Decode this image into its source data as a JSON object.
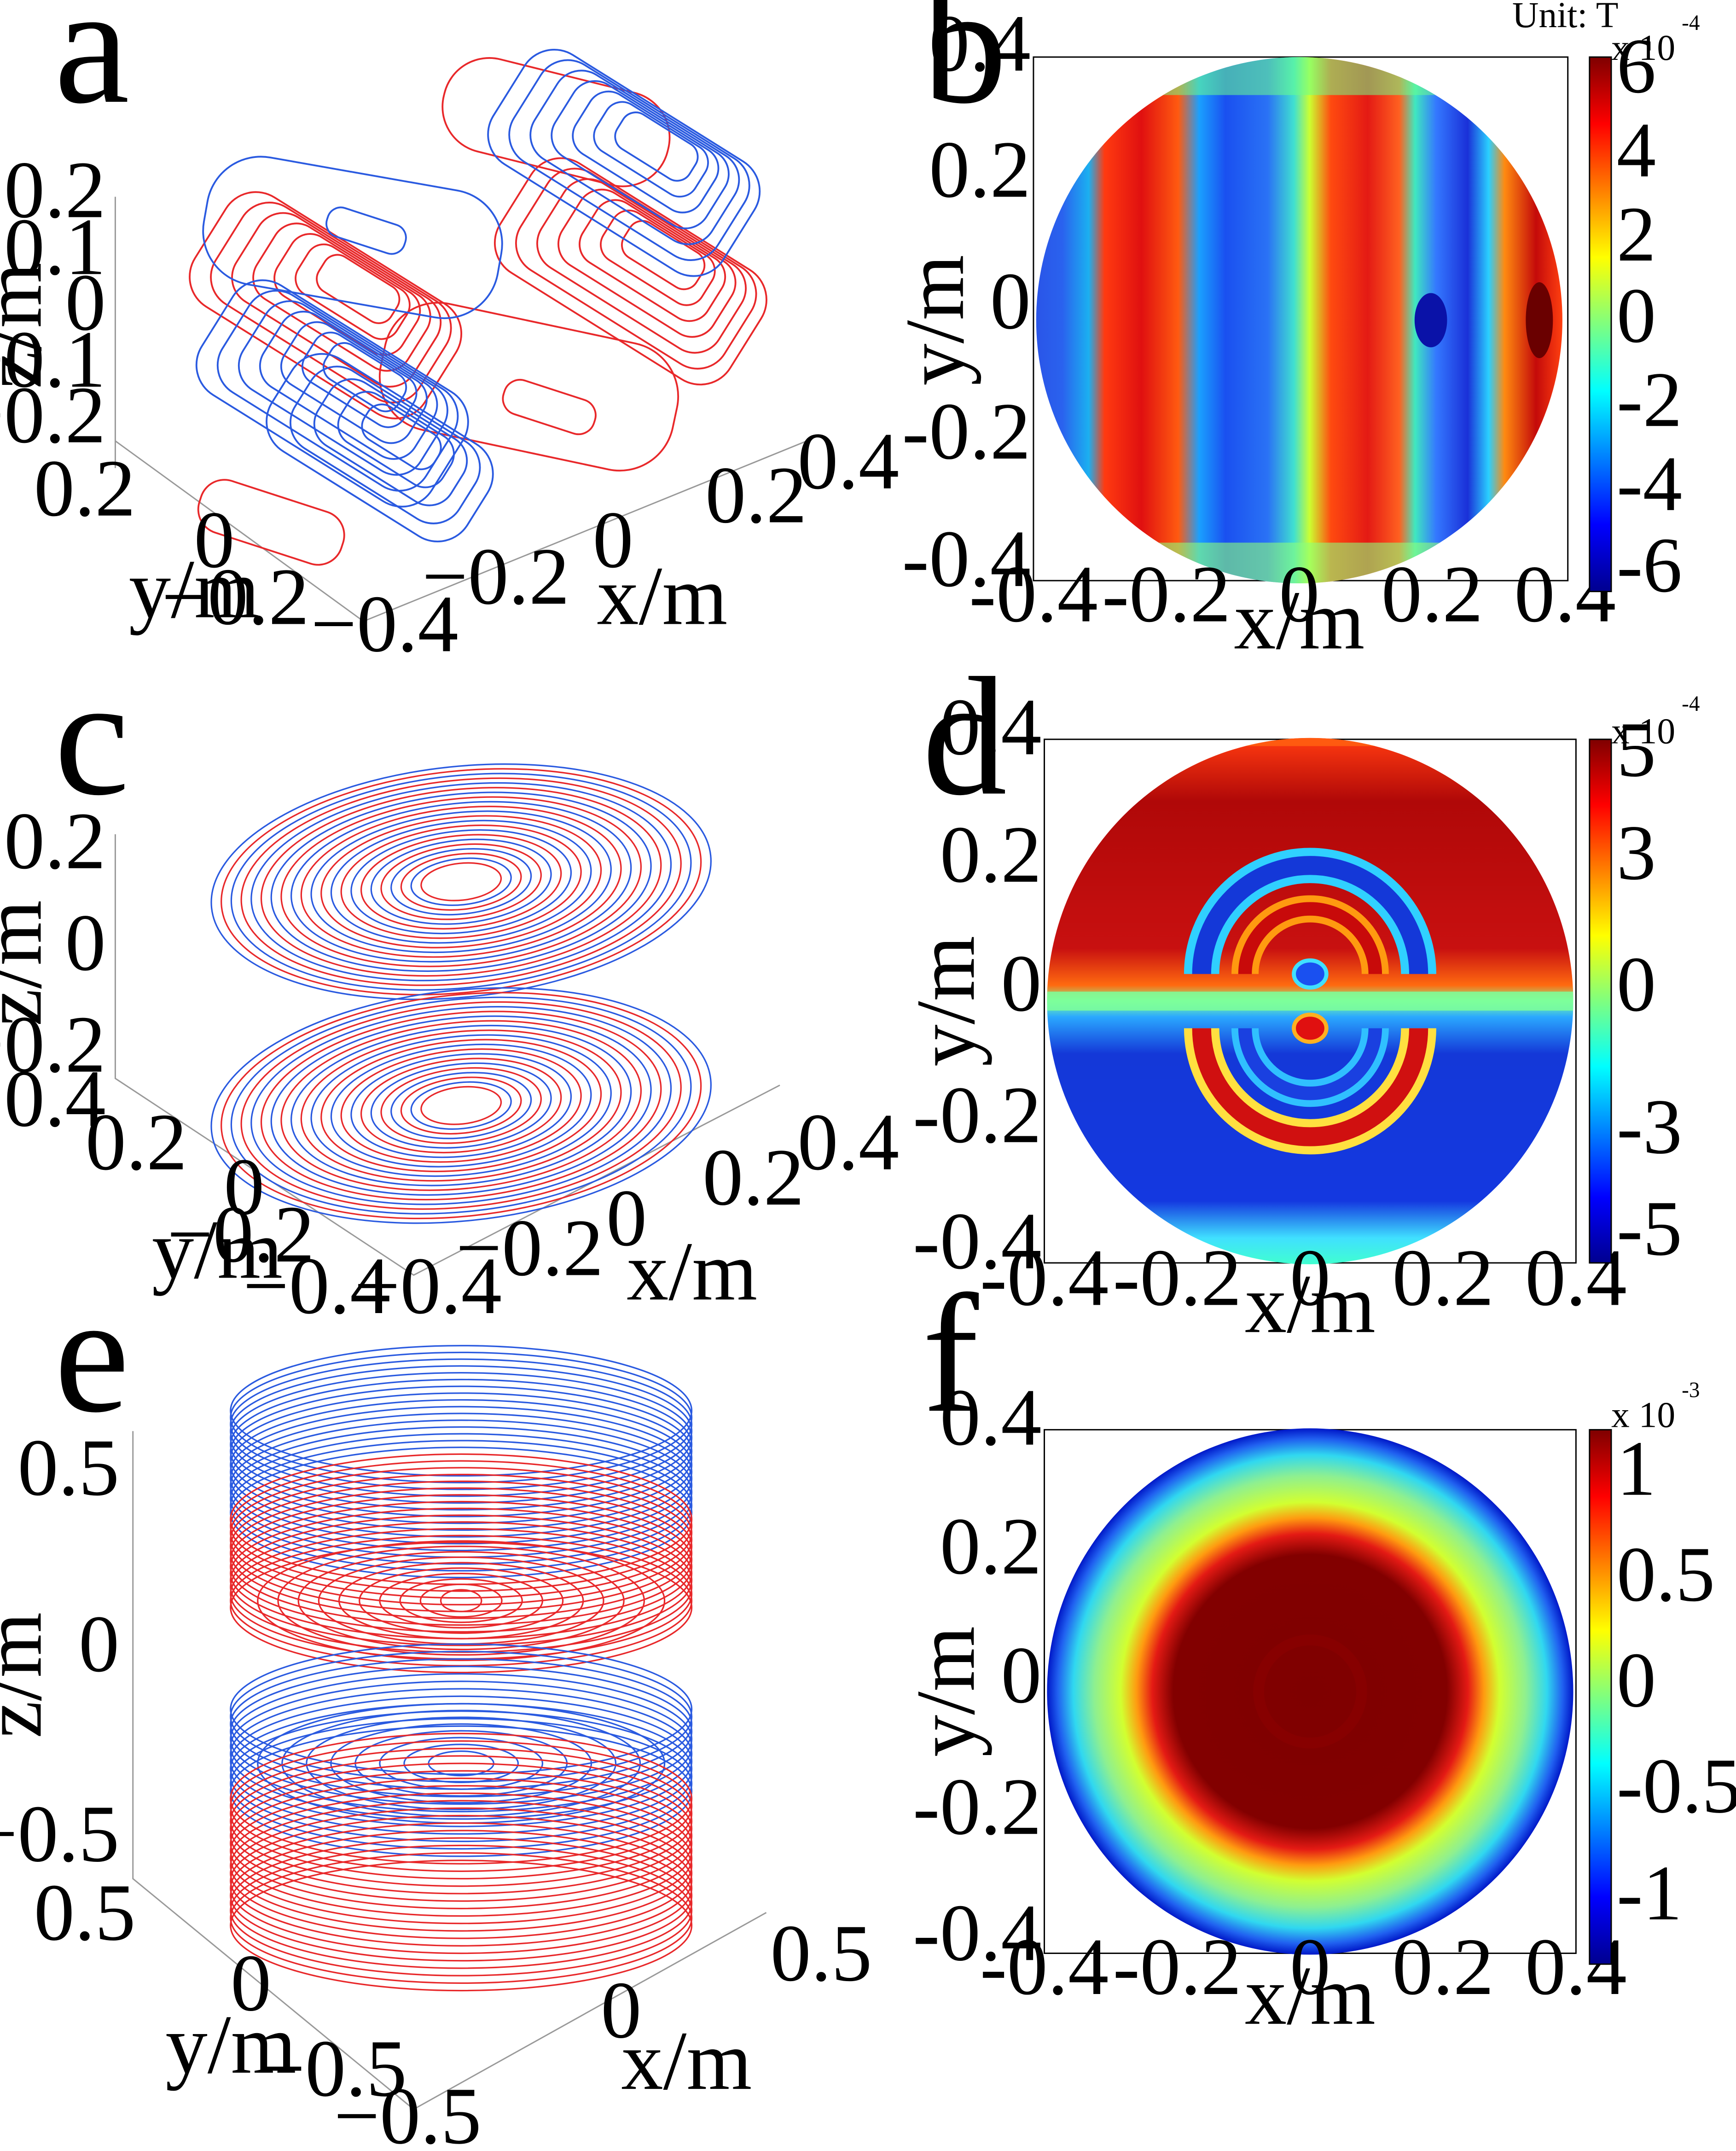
{
  "panels": [
    {
      "id": "a",
      "type": "3d-contour",
      "letter": "a",
      "axes": {
        "x": {
          "label": "x/m",
          "ticks": [
            "−0.4",
            "−0.2",
            "0",
            "0.2",
            "0.4"
          ]
        },
        "y": {
          "label": "y/m",
          "ticks": [
            "−0.2",
            "0",
            "0.2"
          ]
        },
        "z": {
          "label": "z/m",
          "ticks": [
            "−0.2",
            "−0.1",
            "0",
            "0.1",
            "0.2"
          ]
        }
      },
      "colors": {
        "positive": "#e8282a",
        "negative": "#2a5ae0"
      }
    },
    {
      "id": "b",
      "type": "heatmap",
      "letter": "b",
      "unit": "Unit: T",
      "exponent_base": "x 10",
      "exponent": "-4",
      "xlabel": "x/m",
      "ylabel": "y/m",
      "xticks": [
        "-0.4",
        "-0.2",
        "0",
        "0.2",
        "0.4"
      ],
      "yticks": [
        "-0.4",
        "-0.2",
        "0",
        "0.2",
        "0.4"
      ],
      "colorbar_ticks": [
        "6",
        "4",
        "2",
        "0",
        "-2",
        "-4",
        "-6"
      ]
    },
    {
      "id": "c",
      "type": "3d-contour",
      "letter": "c",
      "axes": {
        "x": {
          "label": "x/m",
          "ticks": [
            "−0.4",
            "−0.2",
            "0",
            "0.2",
            "0.4"
          ]
        },
        "y": {
          "label": "y/m",
          "ticks": [
            "−0.4",
            "−0.2",
            "0",
            "0.2",
            "0.4"
          ]
        },
        "z": {
          "label": "z/m",
          "ticks": [
            "−0.2",
            "0",
            "0.2"
          ]
        }
      }
    },
    {
      "id": "d",
      "type": "heatmap",
      "letter": "d",
      "exponent_base": "x 10",
      "exponent": "-4",
      "xlabel": "x/m",
      "ylabel": "y/m",
      "xticks": [
        "-0.4",
        "-0.2",
        "0",
        "0.2",
        "0.4"
      ],
      "yticks": [
        "-0.4",
        "-0.2",
        "0",
        "0.2",
        "0.4"
      ],
      "colorbar_ticks": [
        "5",
        "3",
        "0",
        "-3",
        "-5"
      ]
    },
    {
      "id": "e",
      "type": "3d-contour",
      "letter": "e",
      "axes": {
        "x": {
          "label": "x/m",
          "ticks": [
            "−0.5",
            "0",
            "0.5"
          ]
        },
        "y": {
          "label": "y/m",
          "ticks": [
            "−0.5",
            "0",
            "0.5"
          ]
        },
        "z": {
          "label": "z/m",
          "ticks": [
            "−0.5",
            "0",
            "0.5"
          ]
        }
      }
    },
    {
      "id": "f",
      "type": "heatmap",
      "letter": "f",
      "exponent_base": "x 10",
      "exponent": "-3",
      "xlabel": "x/m",
      "ylabel": "y/m",
      "xticks": [
        "-0.4",
        "-0.2",
        "0",
        "0.2",
        "0.4"
      ],
      "yticks": [
        "-0.4",
        "-0.2",
        "0",
        "0.2",
        "0.4"
      ],
      "colorbar_ticks": [
        "1",
        "0.5",
        "0",
        "-0.5",
        "-1"
      ]
    }
  ],
  "chart_data": [
    {
      "type": "3d-contour",
      "panel": "a",
      "xlim": [
        -0.4,
        0.4
      ],
      "ylim": [
        -0.3,
        0.3
      ],
      "zlim": [
        -0.25,
        0.25
      ],
      "grid": false
    },
    {
      "type": "heatmap",
      "panel": "b",
      "xlim": [
        -0.4,
        0.4
      ],
      "ylim": [
        -0.4,
        0.4
      ],
      "colorbar_range": [
        -6,
        6
      ],
      "colormap": "jet",
      "pattern": "vertical bands",
      "band_centers_x": [
        -0.37,
        -0.24,
        -0.08,
        0.1,
        0.22,
        0.36
      ],
      "band_values": [
        -4,
        5,
        -5,
        5,
        -6,
        6
      ]
    },
    {
      "type": "3d-contour",
      "panel": "c",
      "xlim": [
        -0.4,
        0.4
      ],
      "ylim": [
        -0.4,
        0.4
      ],
      "zlim": [
        -0.3,
        0.3
      ],
      "grid": false
    },
    {
      "type": "heatmap",
      "panel": "d",
      "xlim": [
        -0.4,
        0.4
      ],
      "ylim": [
        -0.4,
        0.4
      ],
      "colorbar_range": [
        -5.2,
        5.2
      ],
      "colormap": "jet",
      "pattern": "antisymmetric in y with concentric arcs"
    },
    {
      "type": "3d-contour",
      "panel": "e",
      "xlim": [
        -0.6,
        0.6
      ],
      "ylim": [
        -0.6,
        0.6
      ],
      "zlim": [
        -0.7,
        0.7
      ],
      "grid": false
    },
    {
      "type": "heatmap",
      "panel": "f",
      "xlim": [
        -0.4,
        0.4
      ],
      "ylim": [
        -0.4,
        0.4
      ],
      "colorbar_range": [
        -1.2,
        1.2
      ],
      "colormap": "jet",
      "pattern": "radially symmetric, maximum at center",
      "center_value": 1.2,
      "edge_value": -1.2
    }
  ]
}
